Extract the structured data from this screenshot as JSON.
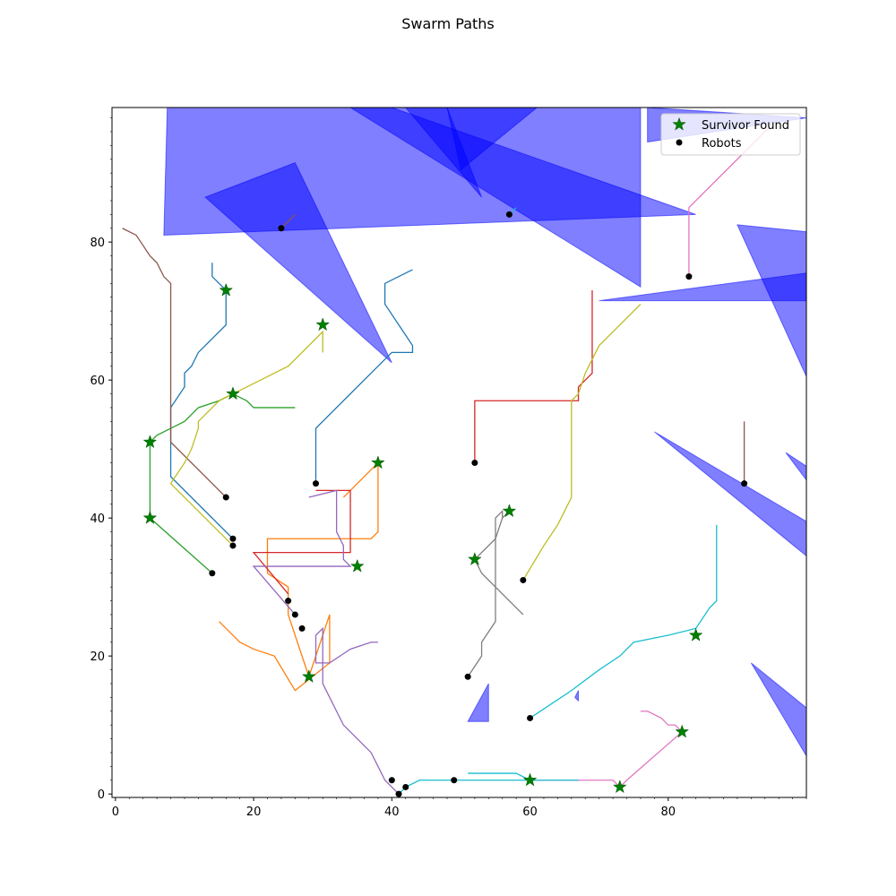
{
  "chart_data": {
    "type": "line",
    "title": "Swarm Paths",
    "xlabel": "",
    "ylabel": "",
    "xlim": [
      -0.5,
      100
    ],
    "ylim": [
      -0.5,
      99.5
    ],
    "x_ticks": [
      0,
      20,
      40,
      60,
      80
    ],
    "y_ticks": [
      0,
      20,
      40,
      60,
      80
    ],
    "grid": false,
    "legend_position": "top-right",
    "legend": [
      {
        "label": "Survivor Found",
        "marker": "star",
        "color": "#008000"
      },
      {
        "label": "Robots",
        "marker": "dot",
        "color": "#000000"
      }
    ],
    "obstacle_color": "#0000ff",
    "obstacles": [
      [
        [
          7.5,
          99.5
        ],
        [
          7,
          81
        ],
        [
          84,
          84
        ],
        [
          40,
          99.5
        ]
      ],
      [
        [
          13,
          86.5
        ],
        [
          26,
          91.5
        ],
        [
          40,
          62.5
        ]
      ],
      [
        [
          34,
          99.5
        ],
        [
          76,
          99.5
        ],
        [
          76,
          73.5
        ]
      ],
      [
        [
          42,
          99.5
        ],
        [
          53,
          86.5
        ],
        [
          48,
          99.5
        ]
      ],
      [
        [
          48,
          99.5
        ],
        [
          50,
          90.5
        ],
        [
          61,
          99.5
        ]
      ],
      [
        [
          77,
          99.5
        ],
        [
          77,
          94.5
        ],
        [
          100,
          98
        ]
      ],
      [
        [
          70,
          71.5
        ],
        [
          100,
          71.5
        ],
        [
          100,
          75.5
        ]
      ],
      [
        [
          90,
          82.5
        ],
        [
          100,
          81.5
        ],
        [
          100,
          60.5
        ]
      ],
      [
        [
          78,
          52.5
        ],
        [
          100,
          39.5
        ],
        [
          100,
          34.5
        ]
      ],
      [
        [
          97,
          49.5
        ],
        [
          100,
          47.5
        ],
        [
          100,
          45.5
        ]
      ],
      [
        [
          92,
          19
        ],
        [
          100,
          12.5
        ],
        [
          100,
          5.5
        ]
      ],
      [
        [
          51,
          10.5
        ],
        [
          54,
          16
        ],
        [
          54,
          10.5
        ]
      ],
      [
        [
          66.5,
          14
        ],
        [
          67,
          15
        ],
        [
          67,
          13.5
        ]
      ]
    ],
    "series": [
      {
        "color": "#1f77b4",
        "points": [
          [
            29,
            45
          ],
          [
            29,
            53
          ],
          [
            40,
            64
          ],
          [
            43,
            64
          ],
          [
            43,
            65
          ],
          [
            39,
            71
          ],
          [
            39,
            72
          ],
          [
            39,
            74
          ],
          [
            43,
            76
          ]
        ]
      },
      {
        "color": "#1f77b4",
        "points": [
          [
            17,
            37
          ],
          [
            8,
            46
          ],
          [
            8,
            56
          ],
          [
            10,
            59
          ],
          [
            10,
            61
          ],
          [
            11,
            62
          ],
          [
            12,
            64
          ],
          [
            14,
            66
          ],
          [
            16,
            68
          ],
          [
            16,
            73
          ],
          [
            14,
            75
          ],
          [
            14,
            77
          ]
        ]
      },
      {
        "color": "#ff7f0e",
        "points": [
          [
            38,
            48
          ],
          [
            33,
            43
          ]
        ]
      },
      {
        "color": "#ff7f0e",
        "points": [
          [
            38,
            48
          ],
          [
            38,
            38
          ],
          [
            37,
            37
          ],
          [
            22,
            37
          ],
          [
            22,
            32
          ],
          [
            25,
            30
          ],
          [
            25,
            26
          ],
          [
            28,
            17
          ]
        ]
      },
      {
        "color": "#ff7f0e",
        "points": [
          [
            28,
            17
          ],
          [
            31,
            26
          ],
          [
            31,
            19
          ],
          [
            26,
            15
          ],
          [
            23,
            20
          ],
          [
            20,
            21
          ],
          [
            18,
            22
          ],
          [
            16,
            24
          ],
          [
            15,
            25
          ]
        ]
      },
      {
        "color": "#2ca02c",
        "points": [
          [
            14,
            32
          ],
          [
            5,
            40
          ],
          [
            5,
            51
          ],
          [
            6,
            52
          ],
          [
            8,
            53
          ],
          [
            10,
            54
          ],
          [
            12,
            56
          ],
          [
            15,
            57
          ],
          [
            17,
            58
          ],
          [
            19,
            57
          ],
          [
            20,
            56
          ],
          [
            26,
            56
          ]
        ]
      },
      {
        "color": "#d62728",
        "points": [
          [
            52,
            48
          ],
          [
            52,
            57
          ],
          [
            67,
            57
          ],
          [
            67,
            59
          ],
          [
            69,
            61
          ],
          [
            69,
            73
          ]
        ]
      },
      {
        "color": "#d62728",
        "points": [
          [
            25,
            29
          ],
          [
            20,
            35
          ],
          [
            34,
            35
          ],
          [
            34,
            44
          ],
          [
            29,
            44
          ]
        ]
      },
      {
        "color": "#9467bd",
        "points": [
          [
            26,
            26
          ],
          [
            20,
            33
          ],
          [
            34,
            33
          ],
          [
            33,
            34
          ],
          [
            33,
            36
          ],
          [
            32,
            38
          ],
          [
            32,
            44
          ],
          [
            28,
            43
          ]
        ]
      },
      {
        "color": "#9467bd",
        "points": [
          [
            41,
            0
          ],
          [
            39,
            2
          ],
          [
            38,
            4
          ],
          [
            37,
            6
          ],
          [
            35,
            8
          ],
          [
            33,
            10
          ],
          [
            32,
            12
          ],
          [
            31,
            14
          ],
          [
            30,
            16
          ],
          [
            30,
            18
          ],
          [
            30,
            24
          ],
          [
            29,
            23
          ],
          [
            29,
            19
          ],
          [
            31,
            19
          ],
          [
            34,
            21
          ],
          [
            37,
            22
          ],
          [
            38,
            22
          ]
        ]
      },
      {
        "color": "#8c564b",
        "points": [
          [
            16,
            43
          ],
          [
            8,
            51
          ],
          [
            8,
            74
          ],
          [
            7,
            75
          ],
          [
            6,
            77
          ],
          [
            5,
            78
          ],
          [
            3,
            81
          ],
          [
            1,
            82
          ]
        ]
      },
      {
        "color": "#8c564b",
        "points": [
          [
            24,
            82
          ],
          [
            26,
            84
          ]
        ]
      },
      {
        "color": "#8c564b",
        "points": [
          [
            91,
            45
          ],
          [
            91,
            54
          ]
        ]
      },
      {
        "color": "#e377c2",
        "points": [
          [
            83,
            75
          ],
          [
            83,
            85
          ],
          [
            95,
            97
          ]
        ]
      },
      {
        "color": "#e377c2",
        "points": [
          [
            73,
            1
          ],
          [
            74,
            2
          ],
          [
            82,
            9
          ],
          [
            81,
            10
          ],
          [
            80,
            10
          ],
          [
            79,
            11
          ],
          [
            77,
            12
          ],
          [
            76,
            12
          ]
        ]
      },
      {
        "color": "#e377c2",
        "points": [
          [
            73,
            1
          ],
          [
            72,
            2
          ],
          [
            60,
            2
          ]
        ]
      },
      {
        "color": "#7f7f7f",
        "points": [
          [
            51,
            17
          ],
          [
            53,
            20
          ],
          [
            53,
            22
          ],
          [
            55,
            25
          ],
          [
            55,
            40
          ],
          [
            56,
            41
          ],
          [
            56,
            40
          ]
        ]
      },
      {
        "color": "#7f7f7f",
        "points": [
          [
            52,
            34
          ],
          [
            55,
            37
          ],
          [
            56,
            40
          ],
          [
            57,
            41
          ]
        ]
      },
      {
        "color": "#7f7f7f",
        "points": [
          [
            52,
            34
          ],
          [
            53,
            32
          ],
          [
            59,
            26
          ]
        ]
      },
      {
        "color": "#bcbd22",
        "points": [
          [
            59,
            31
          ],
          [
            62,
            36
          ],
          [
            64,
            39
          ],
          [
            65,
            41
          ],
          [
            66,
            43
          ],
          [
            66,
            57
          ],
          [
            67,
            58
          ],
          [
            68,
            61
          ],
          [
            70,
            65
          ],
          [
            73,
            68
          ],
          [
            76,
            71
          ]
        ]
      },
      {
        "color": "#bcbd22",
        "points": [
          [
            17,
            36
          ],
          [
            8,
            45
          ],
          [
            10,
            48
          ],
          [
            11,
            50
          ],
          [
            12,
            53
          ],
          [
            12,
            54
          ],
          [
            14,
            56
          ],
          [
            15,
            57
          ],
          [
            17,
            58
          ],
          [
            21,
            60
          ],
          [
            23,
            61
          ],
          [
            25,
            62
          ],
          [
            30,
            67
          ],
          [
            30,
            64
          ]
        ]
      },
      {
        "color": "#17becf",
        "points": [
          [
            41,
            0
          ],
          [
            42,
            1
          ],
          [
            44,
            2
          ],
          [
            60,
            2
          ],
          [
            67,
            2
          ]
        ]
      },
      {
        "color": "#17becf",
        "points": [
          [
            60,
            11
          ],
          [
            63,
            13
          ],
          [
            66,
            15
          ],
          [
            70,
            18
          ],
          [
            73,
            20
          ],
          [
            75,
            22
          ],
          [
            80,
            23
          ],
          [
            84,
            24
          ],
          [
            86,
            27
          ],
          [
            87,
            28
          ],
          [
            87,
            39
          ]
        ]
      },
      {
        "color": "#17becf",
        "points": [
          [
            51,
            3
          ],
          [
            58,
            3
          ],
          [
            60,
            2
          ]
        ]
      },
      {
        "color": "#17becf",
        "points": [
          [
            57,
            84
          ],
          [
            58,
            85
          ]
        ]
      }
    ],
    "survivors_found": [
      [
        16,
        73
      ],
      [
        30,
        68
      ],
      [
        17,
        58
      ],
      [
        5,
        51
      ],
      [
        38,
        48
      ],
      [
        5,
        40
      ],
      [
        35,
        33
      ],
      [
        28,
        17
      ],
      [
        57,
        41
      ],
      [
        52,
        34
      ],
      [
        84,
        23
      ],
      [
        82,
        9
      ],
      [
        60,
        2
      ],
      [
        73,
        1
      ]
    ],
    "robots": [
      [
        24,
        82
      ],
      [
        57,
        84
      ],
      [
        83,
        75
      ],
      [
        29,
        45
      ],
      [
        52,
        48
      ],
      [
        91,
        45
      ],
      [
        16,
        43
      ],
      [
        17,
        37
      ],
      [
        17,
        36
      ],
      [
        14,
        32
      ],
      [
        59,
        31
      ],
      [
        25,
        28
      ],
      [
        26,
        26
      ],
      [
        27,
        24
      ],
      [
        51,
        17
      ],
      [
        60,
        11
      ],
      [
        40,
        2
      ],
      [
        42,
        1
      ],
      [
        49,
        2
      ],
      [
        41,
        0
      ]
    ]
  }
}
